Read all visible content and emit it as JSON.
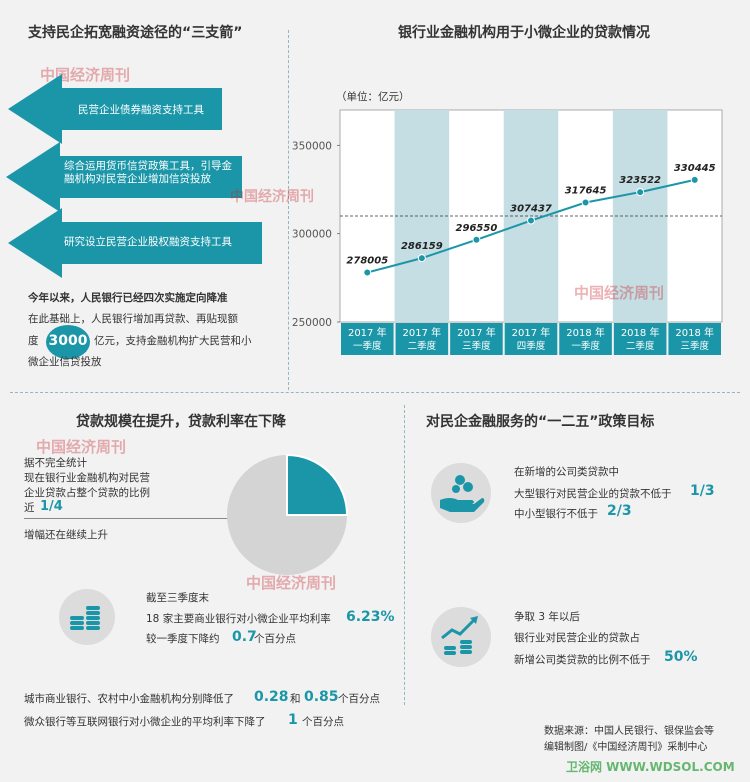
{
  "section1": {
    "title": "支持民企拓宽融资途径的“三支箭”",
    "arrows": [
      {
        "text": "民营企业债券融资支持工具"
      },
      {
        "text": "综合运用货币信贷政策工具，引导金融机构对民营企业增加信贷投放"
      },
      {
        "text": "研究设立民营企业股权融资支持工具"
      }
    ],
    "policy_headline": "今年以来，人民银行已经四次实施定向降准",
    "policy_line1": "在此基础上，人民银行增加再贷款、再贴现额",
    "policy_line2_pre": "度",
    "policy_amount": "3000",
    "policy_line2_post": "亿元，支持金融机构扩大民营和小",
    "policy_line3": "微企业信贷投放"
  },
  "chart_data": {
    "type": "line",
    "title": "银行业金融机构用于小微企业的贷款情况",
    "unit_label": "（单位：亿元）",
    "categories": [
      [
        "2017 年",
        "一季度"
      ],
      [
        "2017 年",
        "二季度"
      ],
      [
        "2017 年",
        "三季度"
      ],
      [
        "2017 年",
        "四季度"
      ],
      [
        "2018 年",
        "一季度"
      ],
      [
        "2018 年",
        "二季度"
      ],
      [
        "2018 年",
        "三季度"
      ]
    ],
    "values": [
      278005,
      286159,
      296550,
      307437,
      317645,
      323522,
      330445
    ],
    "value_labels": [
      "278005",
      "286159",
      "296550",
      "307437",
      "317645",
      "323522",
      "330445"
    ],
    "yticks": [
      250000,
      300000,
      350000
    ],
    "ytick_labels": [
      "250000",
      "300000",
      "350000"
    ],
    "ylim": [
      250000,
      370000
    ],
    "reference_line": 310000,
    "line_color": "#1b96a8",
    "band_color": "#c5dee3"
  },
  "section3": {
    "title": "贷款规模在提升，贷款利率在下降",
    "stat_intro": "据不完全统计",
    "stat_line1": "现在银行业金融机构对民营",
    "stat_line2": "企业贷款占整个贷款的比例",
    "stat_line3_pre": "近",
    "stat_fraction": "1/4",
    "pie_fraction": 0.25,
    "growth_note": "增幅还在继续上升",
    "rate_date": "截至三季度末",
    "rate_line1": "18 家主要商业银行对小微企业平均利率",
    "rate_value": "6.23%",
    "rate_line2_pre": "较一季度下降约",
    "rate_drop": "0.7",
    "rate_line2_post": "个百分点",
    "city_line_pre": "城市商业银行、农村中小金融机构分别降低了",
    "city_drop1": "0.28",
    "city_and": "和",
    "city_drop2": "0.85",
    "city_line_post": "个百分点",
    "web_line_pre": "微众银行等互联网银行对小微企业的平均利率下降了",
    "web_drop": "1",
    "web_line_post": "个百分点"
  },
  "section4": {
    "title": "对民企金融服务的“一二五”政策目标",
    "goal1_intro": "在新增的公司类贷款中",
    "goal1_line1": "大型银行对民营企业的贷款不低于",
    "goal1_val1": "1/3",
    "goal1_line2": "中小型银行不低于",
    "goal1_val2": "2/3",
    "goal2_intro": "争取 3 年以后",
    "goal2_line1": "银行业对民营企业的贷款占",
    "goal2_line2": "新增公司类贷款的比例不低于",
    "goal2_val": "50%"
  },
  "footer": {
    "source": "数据来源：中国人民银行、银保监会等",
    "credit": "编辑制图/《中国经济周刊》采制中心"
  },
  "watermark": "中国经济周刊",
  "site_mark": "卫浴网 WWW.WDSOL.COM",
  "colors": {
    "accent": "#1b96a8",
    "pie_gray": "#d4d4d4",
    "red": "#c9252b"
  }
}
